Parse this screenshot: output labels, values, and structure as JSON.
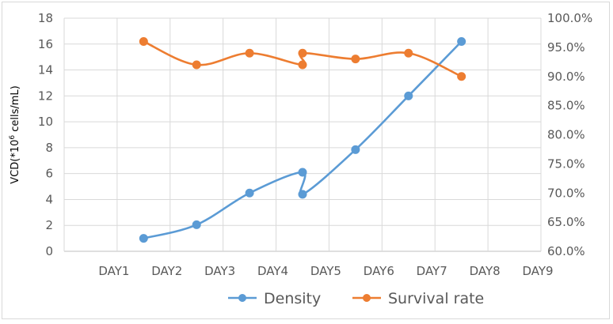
{
  "chart_data": {
    "type": "line",
    "categories": [
      "DAY1",
      "DAY2",
      "DAY3",
      "DAY4",
      "DAY5",
      "DAY6",
      "DAY7",
      "DAY8",
      "DAY9"
    ],
    "y_left": {
      "label_prefix": "VCD(*10",
      "label_sup": "6",
      "label_suffix": " cells/mL)",
      "min": 0,
      "max": 18,
      "ticks": [
        "0",
        "2",
        "4",
        "6",
        "8",
        "10",
        "12",
        "14",
        "16",
        "18"
      ]
    },
    "y_right": {
      "min": 0.6,
      "max": 1.0,
      "ticks": [
        "60.0%",
        "65.0%",
        "70.0%",
        "75.0%",
        "80.0%",
        "85.0%",
        "90.0%",
        "95.0%",
        "100.0%"
      ]
    },
    "series": [
      {
        "name": "Density",
        "axis": "left",
        "color": "#5b9bd5",
        "points": [
          [
            "DAY2",
            1.0
          ],
          [
            "DAY3",
            2.05
          ],
          [
            "DAY4",
            4.5
          ],
          [
            "DAY5",
            6.1
          ],
          [
            "DAY5",
            4.4
          ],
          [
            "DAY6",
            7.85
          ],
          [
            "DAY7",
            12.0
          ],
          [
            "DAY8",
            16.2
          ]
        ]
      },
      {
        "name": "Survival rate",
        "axis": "right",
        "color": "#ed7d31",
        "points": [
          [
            "DAY2",
            0.96
          ],
          [
            "DAY3",
            0.92
          ],
          [
            "DAY4",
            0.94
          ],
          [
            "DAY5",
            0.92
          ],
          [
            "DAY5",
            0.94
          ],
          [
            "DAY6",
            0.93
          ],
          [
            "DAY7",
            0.94
          ],
          [
            "DAY8",
            0.9
          ]
        ]
      }
    ],
    "grid": true,
    "legend_position": "bottom"
  }
}
